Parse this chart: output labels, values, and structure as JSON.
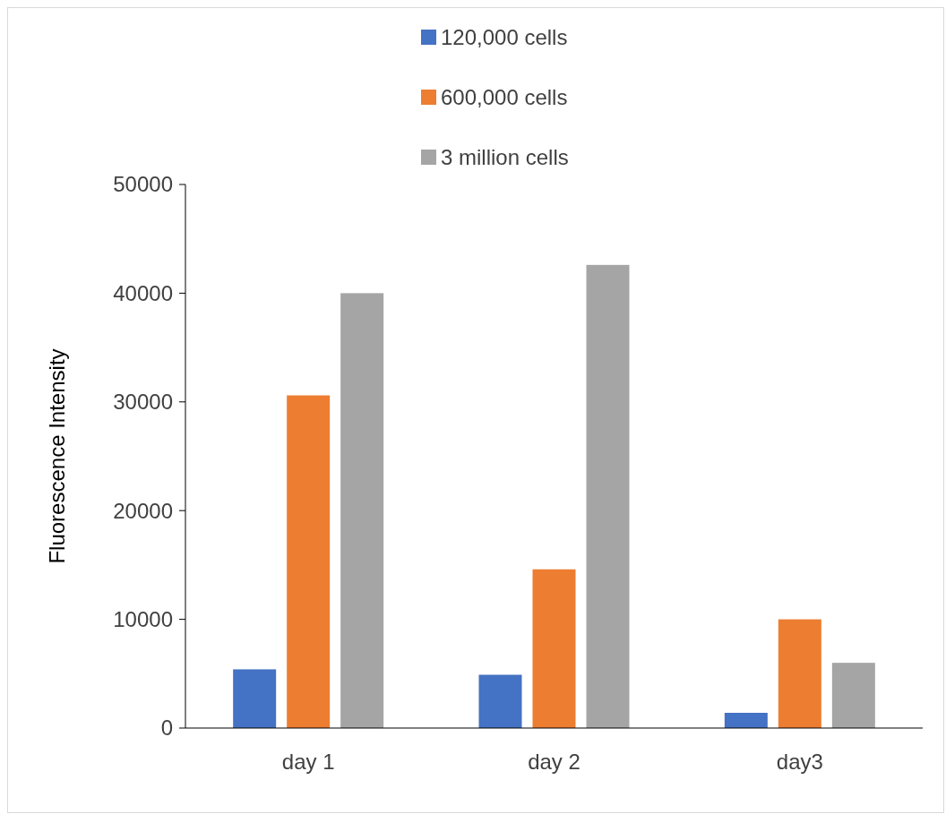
{
  "chart_data": {
    "type": "bar",
    "ylabel": "Fluorescence Intensity",
    "categories": [
      "day 1",
      "day 2",
      "day3"
    ],
    "series": [
      {
        "name": "120,000 cells",
        "color": "#4472c4",
        "values": [
          5400,
          4900,
          1400
        ]
      },
      {
        "name": "600,000 cells",
        "color": "#ed7d31",
        "values": [
          30600,
          14600,
          10000
        ]
      },
      {
        "name": "3 million cells",
        "color": "#a5a5a5",
        "values": [
          40000,
          42600,
          6000
        ]
      }
    ],
    "ylim": [
      0,
      50000
    ],
    "yticks": [
      0,
      10000,
      20000,
      30000,
      40000,
      50000
    ],
    "grid": false,
    "legend": "top"
  }
}
